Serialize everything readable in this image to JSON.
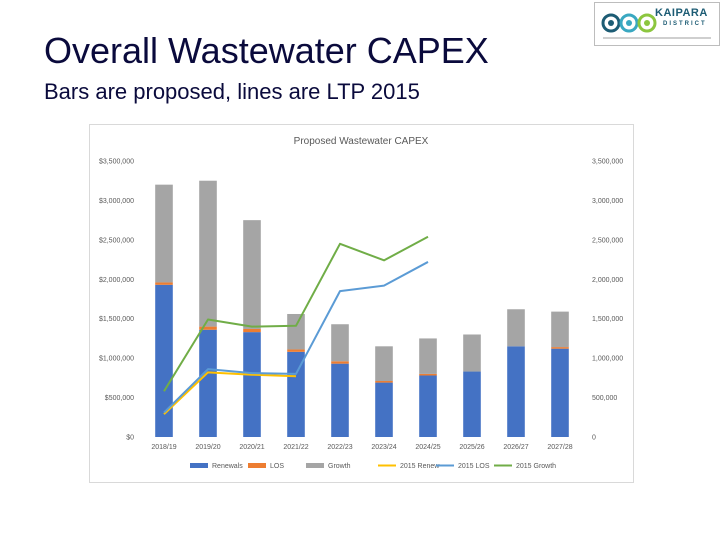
{
  "slide": {
    "title": "Overall Wastewater CAPEX",
    "subtitle": "Bars are proposed, lines are LTP 2015"
  },
  "logo": {
    "brand": "KAIPARA",
    "sub": "DISTRICT",
    "icon": "kaipara-swirl-logo-icon"
  },
  "chart_data": {
    "type": "bar",
    "title": "Proposed Wastewater CAPEX",
    "categories": [
      "2018/19",
      "2019/20",
      "2020/21",
      "2021/22",
      "2022/23",
      "2023/24",
      "2024/25",
      "2025/26",
      "2026/27",
      "2027/28"
    ],
    "stacked": true,
    "series": [
      {
        "name": "Renewals",
        "kind": "bar",
        "color": "#4472c4",
        "values": [
          1930000,
          1360000,
          1330000,
          1080000,
          930000,
          690000,
          780000,
          830000,
          1150000,
          1120000
        ]
      },
      {
        "name": "LOS",
        "kind": "bar",
        "color": "#ed7d31",
        "values": [
          30000,
          40000,
          40000,
          30000,
          30000,
          20000,
          20000,
          0,
          0,
          20000
        ]
      },
      {
        "name": "Growth",
        "kind": "bar",
        "color": "#a5a5a5",
        "values": [
          1240000,
          1850000,
          1380000,
          450000,
          470000,
          440000,
          450000,
          470000,
          470000,
          450000
        ]
      },
      {
        "name": "2015 Renew",
        "kind": "line",
        "color": "#ffc000",
        "values": [
          290000,
          820000,
          790000,
          770000,
          null,
          null,
          null,
          null,
          null,
          null
        ]
      },
      {
        "name": "2015 LOS",
        "kind": "line",
        "color": "#5b9bd5",
        "values": [
          310000,
          860000,
          810000,
          800000,
          1850000,
          1920000,
          2220000,
          null,
          null,
          null
        ]
      },
      {
        "name": "2015 Growth",
        "kind": "line",
        "color": "#70ad47",
        "values": [
          580000,
          1490000,
          1400000,
          1410000,
          2450000,
          2240000,
          2540000,
          null,
          null,
          null
        ]
      }
    ],
    "left_axis": {
      "min": 0,
      "max": 3500000,
      "step": 500000,
      "tick_labels": [
        "$0",
        "$500,000",
        "$1,000,000",
        "$1,500,000",
        "$2,000,000",
        "$2,500,000",
        "$3,000,000",
        "$3,500,000"
      ]
    },
    "right_axis": {
      "min": 0,
      "max": 3500000,
      "step": 500000,
      "tick_labels": [
        "0",
        "500,000",
        "1,000,000",
        "1,500,000",
        "2,000,000",
        "2,500,000",
        "3,000,000",
        "3,500,000"
      ]
    },
    "legend": {
      "placement": "bottom",
      "items": [
        "Renewals",
        "LOS",
        "Growth",
        "2015 Renew",
        "2015 LOS",
        "2015 Growth"
      ]
    },
    "grid": false
  }
}
